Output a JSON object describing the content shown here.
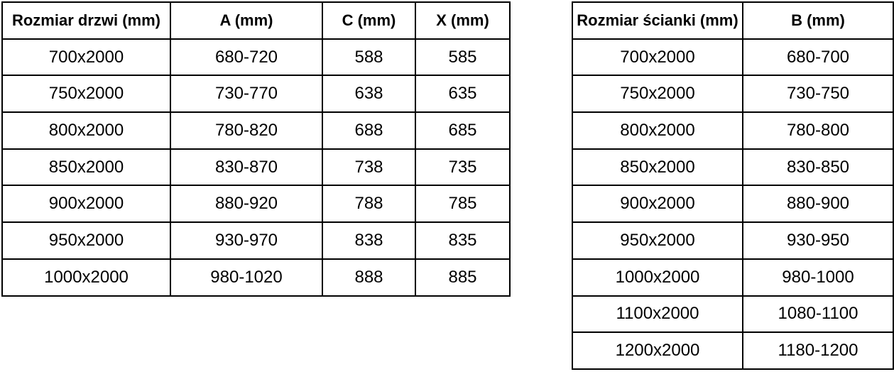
{
  "colors": {
    "border": "#000000",
    "text": "#000000",
    "background": "#ffffff"
  },
  "chart_data": [
    {
      "type": "table",
      "name": "door-dimensions",
      "headers": [
        "Rozmiar drzwi (mm)",
        "A (mm)",
        "C (mm)",
        "X (mm)"
      ],
      "rows": [
        [
          "700x2000",
          "680-720",
          "588",
          "585"
        ],
        [
          "750x2000",
          "730-770",
          "638",
          "635"
        ],
        [
          "800x2000",
          "780-820",
          "688",
          "685"
        ],
        [
          "850x2000",
          "830-870",
          "738",
          "735"
        ],
        [
          "900x2000",
          "880-920",
          "788",
          "785"
        ],
        [
          "950x2000",
          "930-970",
          "838",
          "835"
        ],
        [
          "1000x2000",
          "980-1020",
          "888",
          "885"
        ]
      ]
    },
    {
      "type": "table",
      "name": "wall-panel-dimensions",
      "headers": [
        "Rozmiar ścianki (mm)",
        "B (mm)"
      ],
      "rows": [
        [
          "700x2000",
          "680-700"
        ],
        [
          "750x2000",
          "730-750"
        ],
        [
          "800x2000",
          "780-800"
        ],
        [
          "850x2000",
          "830-850"
        ],
        [
          "900x2000",
          "880-900"
        ],
        [
          "950x2000",
          "930-950"
        ],
        [
          "1000x2000",
          "980-1000"
        ],
        [
          "1100x2000",
          "1080-1100"
        ],
        [
          "1200x2000",
          "1180-1200"
        ]
      ]
    }
  ]
}
